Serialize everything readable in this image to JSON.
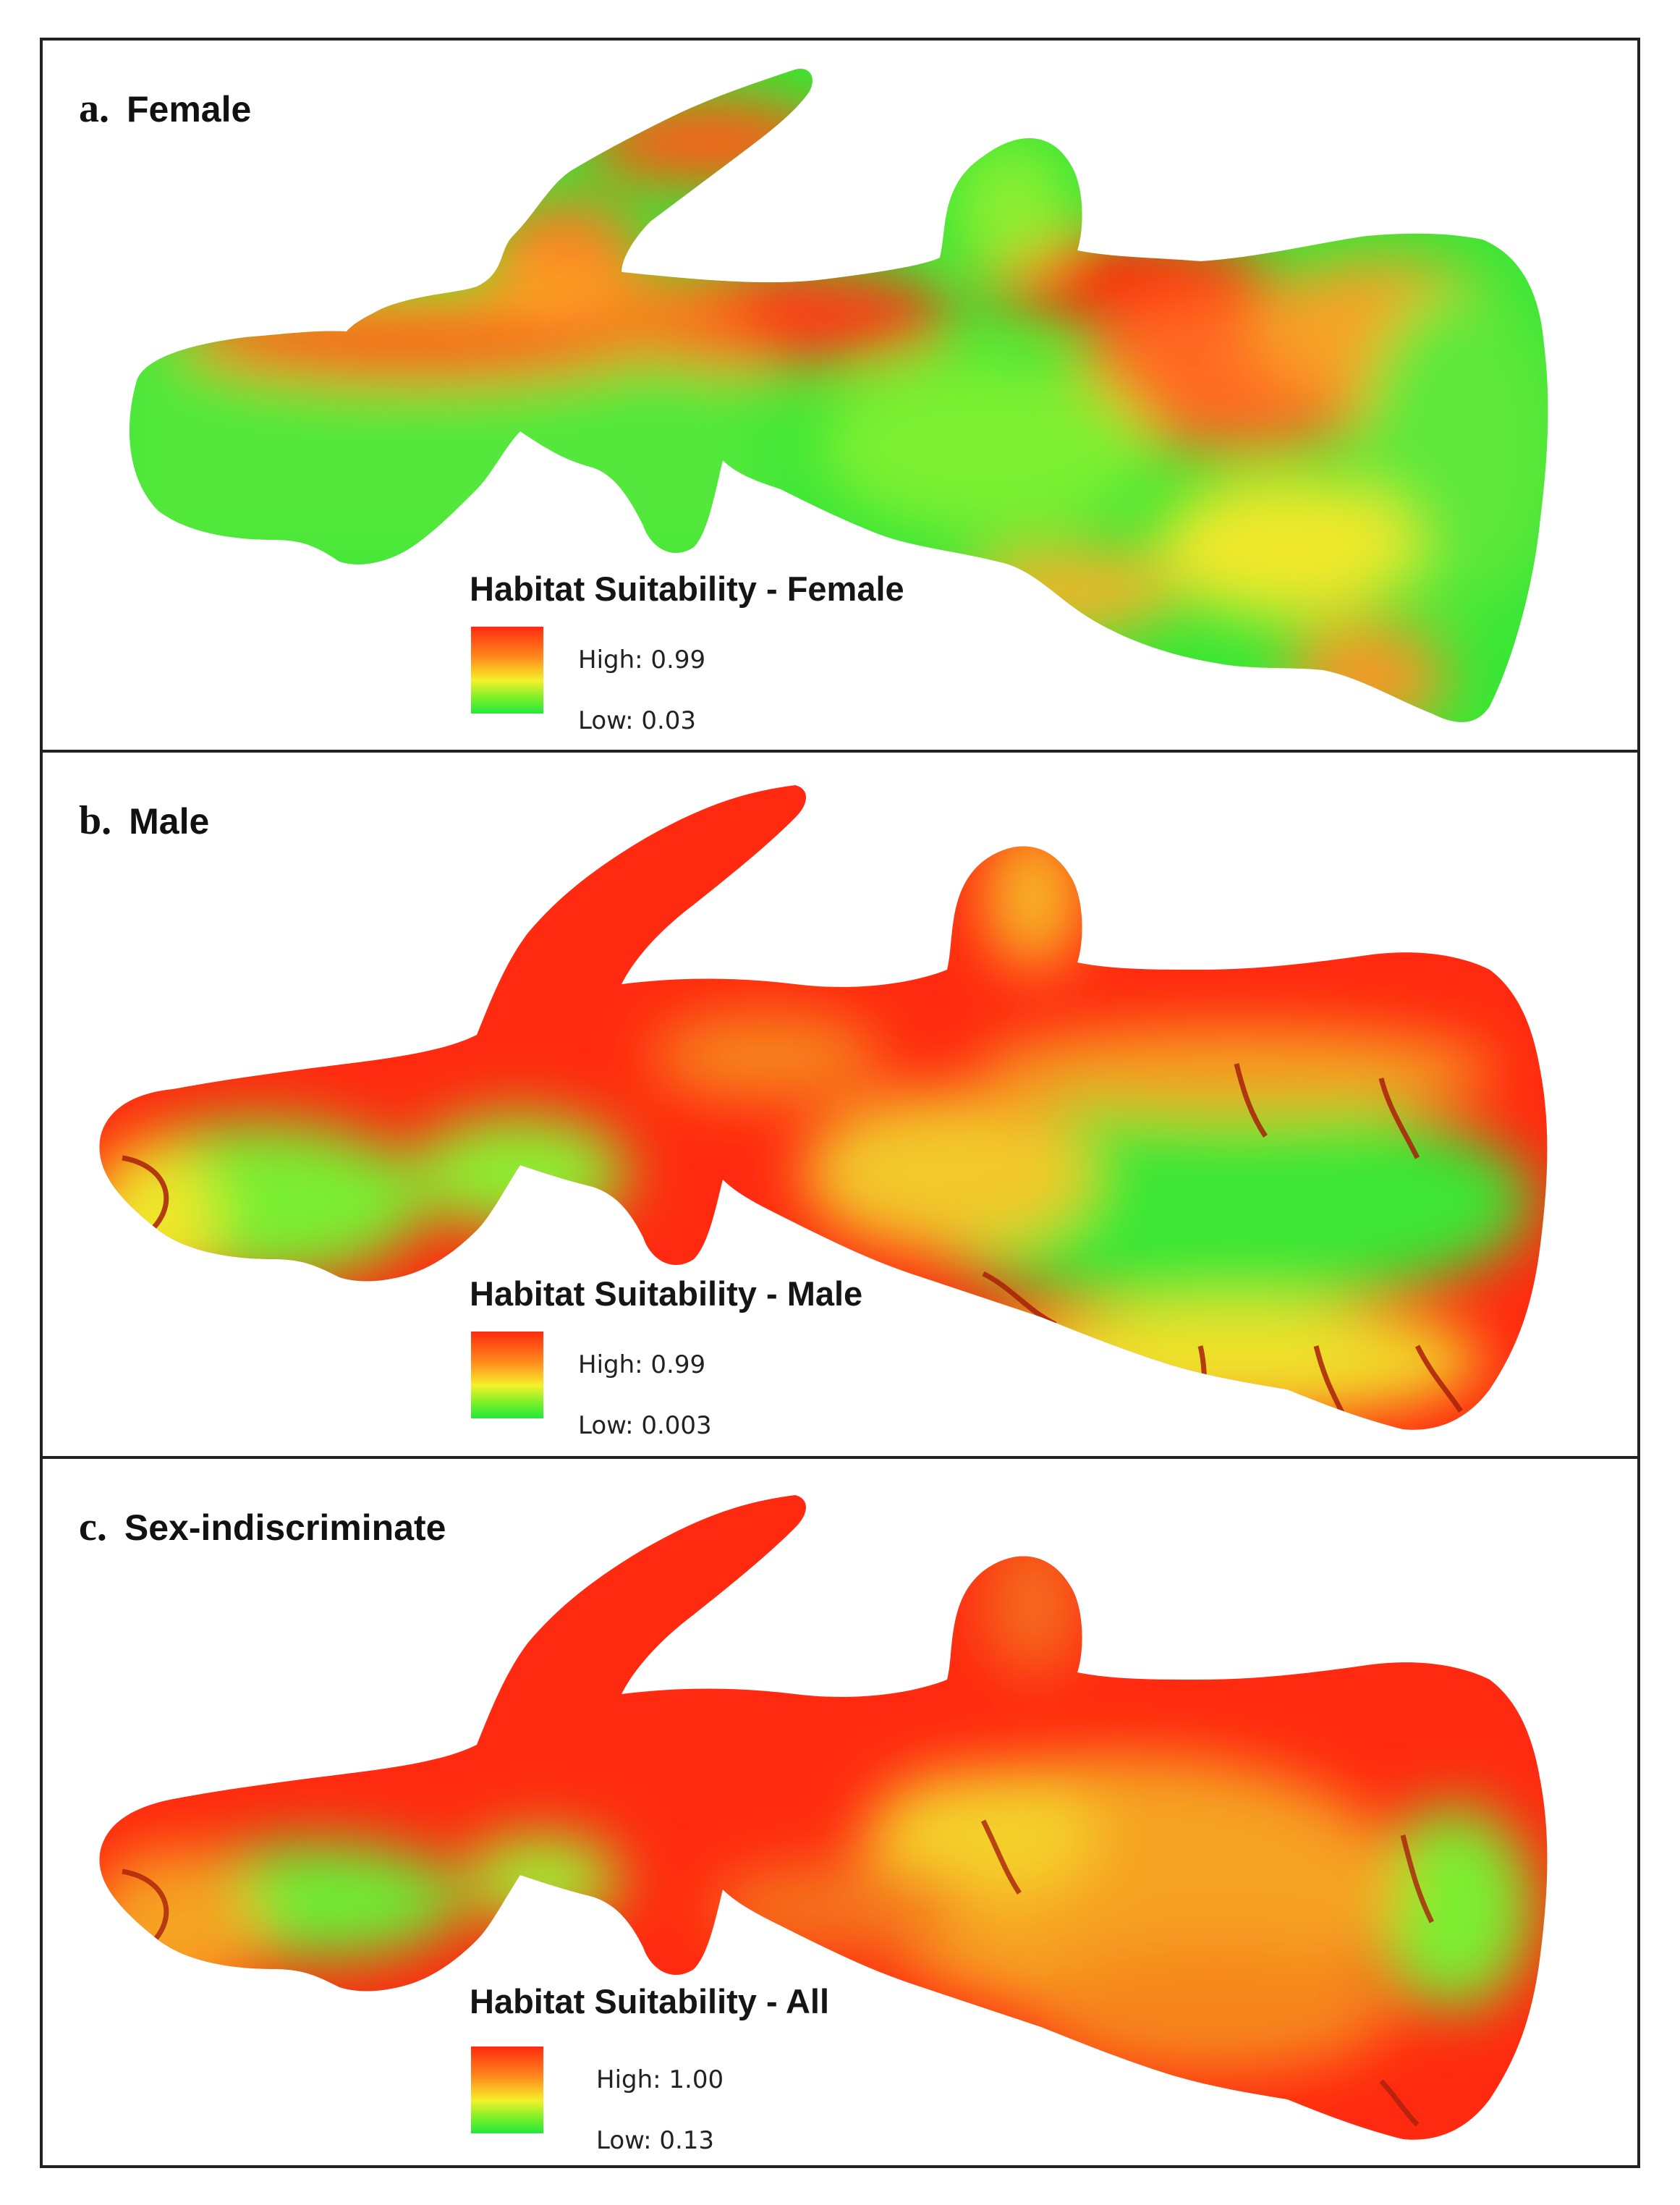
{
  "panels": [
    {
      "letter": "a.",
      "title": "Female",
      "legend_title": "Habitat Suitability - Female",
      "high_label": "High: 0.99",
      "low_label": "Low: 0.03"
    },
    {
      "letter": "b.",
      "title": "Male",
      "legend_title": "Habitat Suitability - Male",
      "high_label": "High: 0.99",
      "low_label": "Low: 0.003"
    },
    {
      "letter": "c.",
      "title": "Sex-indiscriminate",
      "legend_title": "Habitat Suitability - All",
      "high_label": "High: 1.00",
      "low_label": "Low: 0.13"
    }
  ],
  "colors": {
    "high": "#ff2a10",
    "mid_high": "#ff8a1c",
    "mid": "#f5f02a",
    "mid_low": "#7cf028",
    "low": "#22e83a",
    "border": "#222222"
  }
}
